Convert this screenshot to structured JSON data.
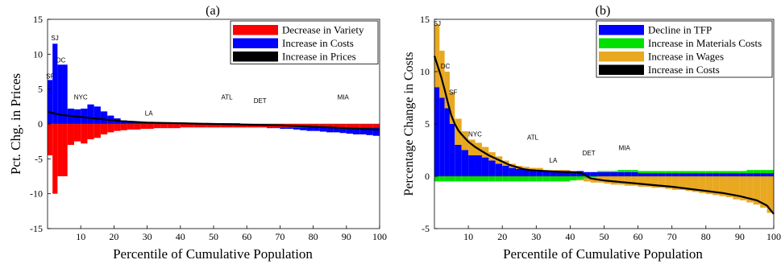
{
  "chart_data": [
    {
      "panel_label": "(a)",
      "type": "bar",
      "xlabel": "Percentile of Cumulative Population",
      "ylabel": "Pct. Chg. in Prices",
      "xlim": [
        0,
        100
      ],
      "ylim": [
        -15,
        15
      ],
      "xticks": [
        "10",
        "20",
        "30",
        "40",
        "50",
        "60",
        "70",
        "80",
        "90",
        "100"
      ],
      "yticks": [
        "15",
        "10",
        "5",
        "0",
        "-5",
        "-10",
        "-15"
      ],
      "legend_position": "top-right",
      "series": [
        {
          "name": "Decrease in Variety",
          "color": "#ff0000",
          "x": [
            0.75,
            2.25,
            3.75,
            5.25,
            7,
            9,
            11,
            13,
            15,
            17,
            19,
            21,
            23,
            25,
            27,
            29,
            31,
            33,
            35,
            37,
            39,
            41,
            43,
            45,
            47,
            49,
            51,
            53,
            55,
            57,
            59,
            61,
            63,
            65,
            67,
            69,
            71,
            73,
            75,
            77,
            79,
            81,
            83,
            85,
            87,
            89,
            91,
            93,
            95,
            97,
            99
          ],
          "values": [
            -4.5,
            -10,
            -7.5,
            -7.5,
            -3,
            -2.5,
            -2.8,
            -2.2,
            -2,
            -1.5,
            -1.2,
            -1,
            -0.9,
            -0.8,
            -0.8,
            -0.7,
            -0.7,
            -0.6,
            -0.6,
            -0.6,
            -0.6,
            -0.5,
            -0.5,
            -0.5,
            -0.5,
            -0.5,
            -0.5,
            -0.5,
            -0.5,
            -0.5,
            -0.5,
            -0.5,
            -0.5,
            -0.5,
            -0.5,
            -0.5,
            -0.5,
            -0.5,
            -0.5,
            -0.5,
            -0.5,
            -0.5,
            -0.5,
            -0.5,
            -0.5,
            -0.5,
            -0.5,
            -0.5,
            -0.5,
            -0.5,
            -0.5
          ]
        },
        {
          "name": "Increase in Costs",
          "color": "#0000ff",
          "x": [
            0.75,
            2.25,
            3.75,
            5.25,
            7,
            9,
            11,
            13,
            15,
            17,
            19,
            21,
            23,
            25,
            27,
            29,
            31,
            33,
            35,
            37,
            39,
            41,
            43,
            45,
            47,
            49,
            51,
            53,
            55,
            57,
            59,
            61,
            63,
            65,
            67,
            69,
            71,
            73,
            75,
            77,
            79,
            81,
            83,
            85,
            87,
            89,
            91,
            93,
            95,
            97,
            99
          ],
          "values": [
            6.3,
            11.5,
            8.5,
            8.5,
            2.2,
            2.1,
            2.2,
            2.8,
            2.5,
            1.8,
            1.2,
            0.8,
            0.5,
            0.4,
            0.3,
            0.3,
            0.3,
            0.2,
            0.2,
            0.2,
            0.2,
            0.2,
            0.1,
            0.1,
            0.1,
            0.1,
            0.1,
            0.1,
            0.1,
            0.1,
            0,
            0,
            0,
            0,
            -0.1,
            -0.1,
            -0.2,
            -0.2,
            -0.3,
            -0.4,
            -0.5,
            -0.5,
            -0.6,
            -0.7,
            -0.7,
            -0.8,
            -0.9,
            -1,
            -1,
            -1.1,
            -1.2
          ]
        },
        {
          "name": "Increase in Prices",
          "color": "#000000",
          "x": [
            0,
            2,
            4,
            6,
            8,
            10,
            12,
            14,
            16,
            18,
            20,
            22,
            24,
            26,
            28,
            30,
            35,
            40,
            45,
            50,
            55,
            60,
            65,
            70,
            75,
            80,
            85,
            90,
            95,
            100
          ],
          "values": [
            1.8,
            1.5,
            1.3,
            1.2,
            1.1,
            1,
            0.9,
            0.8,
            0.7,
            0.6,
            0.5,
            0.4,
            0.35,
            0.3,
            0.25,
            0.2,
            0.15,
            0.1,
            0.05,
            0,
            -0.05,
            -0.1,
            -0.15,
            -0.2,
            -0.3,
            -0.4,
            -0.5,
            -0.6,
            -0.7,
            -0.8
          ]
        }
      ],
      "annotations": [
        {
          "text": "SF",
          "x": 0.8,
          "y": 6.5
        },
        {
          "text": "SJ",
          "x": 2.2,
          "y": 12
        },
        {
          "text": "DC",
          "x": 4,
          "y": 8.8
        },
        {
          "text": "NYC",
          "x": 10,
          "y": 3.5
        },
        {
          "text": "LA",
          "x": 30.5,
          "y": 1.2
        },
        {
          "text": "ATL",
          "x": 54,
          "y": 3.5
        },
        {
          "text": "DET",
          "x": 64,
          "y": 3
        },
        {
          "text": "MIA",
          "x": 89,
          "y": 3.5
        }
      ]
    },
    {
      "panel_label": "(b)",
      "type": "bar",
      "xlabel": "Percentile of Cumulative Population",
      "ylabel": "Percentage Change in Costs",
      "xlim": [
        0,
        100
      ],
      "ylim": [
        -5,
        15
      ],
      "xticks": [
        "10",
        "20",
        "30",
        "40",
        "50",
        "60",
        "70",
        "80",
        "90",
        "100"
      ],
      "yticks": [
        "15",
        "10",
        "5",
        "0",
        "-5"
      ],
      "legend_position": "top-right",
      "series": [
        {
          "name": "Decline in TFP",
          "color": "#0000ff",
          "x": [
            0.75,
            2.25,
            3.75,
            5.25,
            7,
            9,
            11,
            13,
            15,
            17,
            19,
            21,
            23,
            25,
            27,
            29,
            31,
            33,
            35,
            37,
            39,
            41,
            43,
            45,
            47,
            49,
            51,
            53,
            55,
            57,
            59,
            61,
            63,
            65,
            67,
            69,
            71,
            73,
            75,
            77,
            79,
            81,
            83,
            85,
            87,
            89,
            91,
            93,
            95,
            97,
            99
          ],
          "values": [
            8.5,
            7.5,
            6.5,
            5,
            3,
            2.5,
            2,
            2,
            1.8,
            1.5,
            1.2,
            1,
            0.8,
            0.7,
            0.7,
            0.6,
            0.6,
            0.5,
            0.5,
            0.5,
            0.5,
            0.5,
            0.5,
            0.4,
            0.4,
            0.4,
            0.4,
            0.4,
            0.4,
            0.4,
            0.4,
            0.3,
            0.3,
            0.3,
            0.3,
            0.3,
            0.3,
            0.3,
            0.3,
            0.3,
            0.3,
            0.3,
            0.3,
            0.3,
            0.3,
            0.3,
            0.3,
            0.3,
            0.3,
            0.3,
            0.3
          ]
        },
        {
          "name": "Increase in Materials Costs",
          "color": "#00e000",
          "x": [
            0.75,
            2.25,
            3.75,
            5.25,
            7,
            9,
            11,
            13,
            15,
            17,
            19,
            21,
            23,
            25,
            27,
            29,
            31,
            33,
            35,
            37,
            39,
            41,
            43,
            45,
            47,
            49,
            51,
            53,
            55,
            57,
            59,
            61,
            63,
            65,
            67,
            69,
            71,
            73,
            75,
            77,
            79,
            81,
            83,
            85,
            87,
            89,
            91,
            93,
            95,
            97,
            99
          ],
          "values": [
            -0.5,
            -0.5,
            -0.5,
            -0.5,
            -0.5,
            -0.5,
            -0.5,
            -0.5,
            -0.5,
            -0.5,
            -0.5,
            -0.5,
            -0.5,
            -0.5,
            -0.5,
            -0.5,
            -0.5,
            -0.5,
            -0.5,
            -0.5,
            -0.5,
            -0.4,
            -0.3,
            -0.2,
            -0.1,
            0.1,
            0.1,
            0.1,
            0.2,
            0.2,
            0.2,
            0.2,
            0.2,
            0.2,
            0.2,
            0.2,
            0.2,
            0.2,
            0.2,
            0.2,
            0.2,
            0.2,
            0.2,
            0.2,
            0.2,
            0.2,
            0.2,
            0.3,
            0.3,
            0.3,
            0.3
          ]
        },
        {
          "name": "Increase in Wages",
          "color": "#e8a820",
          "x": [
            0.75,
            2.25,
            3.75,
            5.25,
            7,
            9,
            11,
            13,
            15,
            17,
            19,
            21,
            23,
            25,
            27,
            29,
            31,
            33,
            35,
            37,
            39,
            41,
            43,
            45,
            47,
            49,
            51,
            53,
            55,
            57,
            59,
            61,
            63,
            65,
            67,
            69,
            71,
            73,
            75,
            77,
            79,
            81,
            83,
            85,
            87,
            89,
            91,
            93,
            95,
            97,
            99
          ],
          "values": [
            6,
            4.5,
            3.5,
            3,
            2.5,
            1.8,
            1.5,
            1.2,
            1,
            0.8,
            0.7,
            0.5,
            0.4,
            0.3,
            0.2,
            0.2,
            0.2,
            0.1,
            0.1,
            0.1,
            0.1,
            0,
            -0.1,
            -0.3,
            -0.5,
            -0.6,
            -0.7,
            -0.8,
            -0.8,
            -0.9,
            -0.9,
            -1,
            -1,
            -1.1,
            -1.1,
            -1.2,
            -1.3,
            -1.3,
            -1.4,
            -1.5,
            -1.6,
            -1.7,
            -1.8,
            -1.9,
            -2,
            -2.2,
            -2.3,
            -2.5,
            -2.7,
            -3,
            -3.5
          ]
        },
        {
          "name": "Increase in Costs",
          "color": "#000000",
          "x": [
            0,
            1,
            2,
            3,
            4,
            5,
            6,
            7,
            8,
            10,
            12,
            14,
            16,
            18,
            20,
            22,
            24,
            26,
            28,
            30,
            35,
            40,
            43,
            44,
            45,
            46,
            48,
            50,
            55,
            60,
            65,
            70,
            75,
            80,
            85,
            90,
            95,
            98,
            100
          ],
          "values": [
            11.5,
            10.5,
            9.5,
            8.3,
            7,
            5.8,
            5,
            4.4,
            4,
            3.3,
            2.8,
            2.4,
            2,
            1.7,
            1.4,
            1.1,
            0.9,
            0.7,
            0.6,
            0.55,
            0.45,
            0.4,
            0.35,
            0.2,
            0,
            -0.2,
            -0.3,
            -0.4,
            -0.55,
            -0.7,
            -0.85,
            -1,
            -1.2,
            -1.4,
            -1.6,
            -1.9,
            -2.3,
            -2.8,
            -3.6
          ]
        }
      ],
      "annotations": [
        {
          "text": "SJ",
          "x": 0.8,
          "y": 14.4
        },
        {
          "text": "DC",
          "x": 3.2,
          "y": 10.3
        },
        {
          "text": "SF",
          "x": 5.5,
          "y": 7.8
        },
        {
          "text": "NYC",
          "x": 12,
          "y": 3.8
        },
        {
          "text": "ATL",
          "x": 29,
          "y": 3.5
        },
        {
          "text": "LA",
          "x": 35,
          "y": 1.3
        },
        {
          "text": "DET",
          "x": 45.5,
          "y": 2
        },
        {
          "text": "MIA",
          "x": 56,
          "y": 2.5
        }
      ]
    }
  ]
}
